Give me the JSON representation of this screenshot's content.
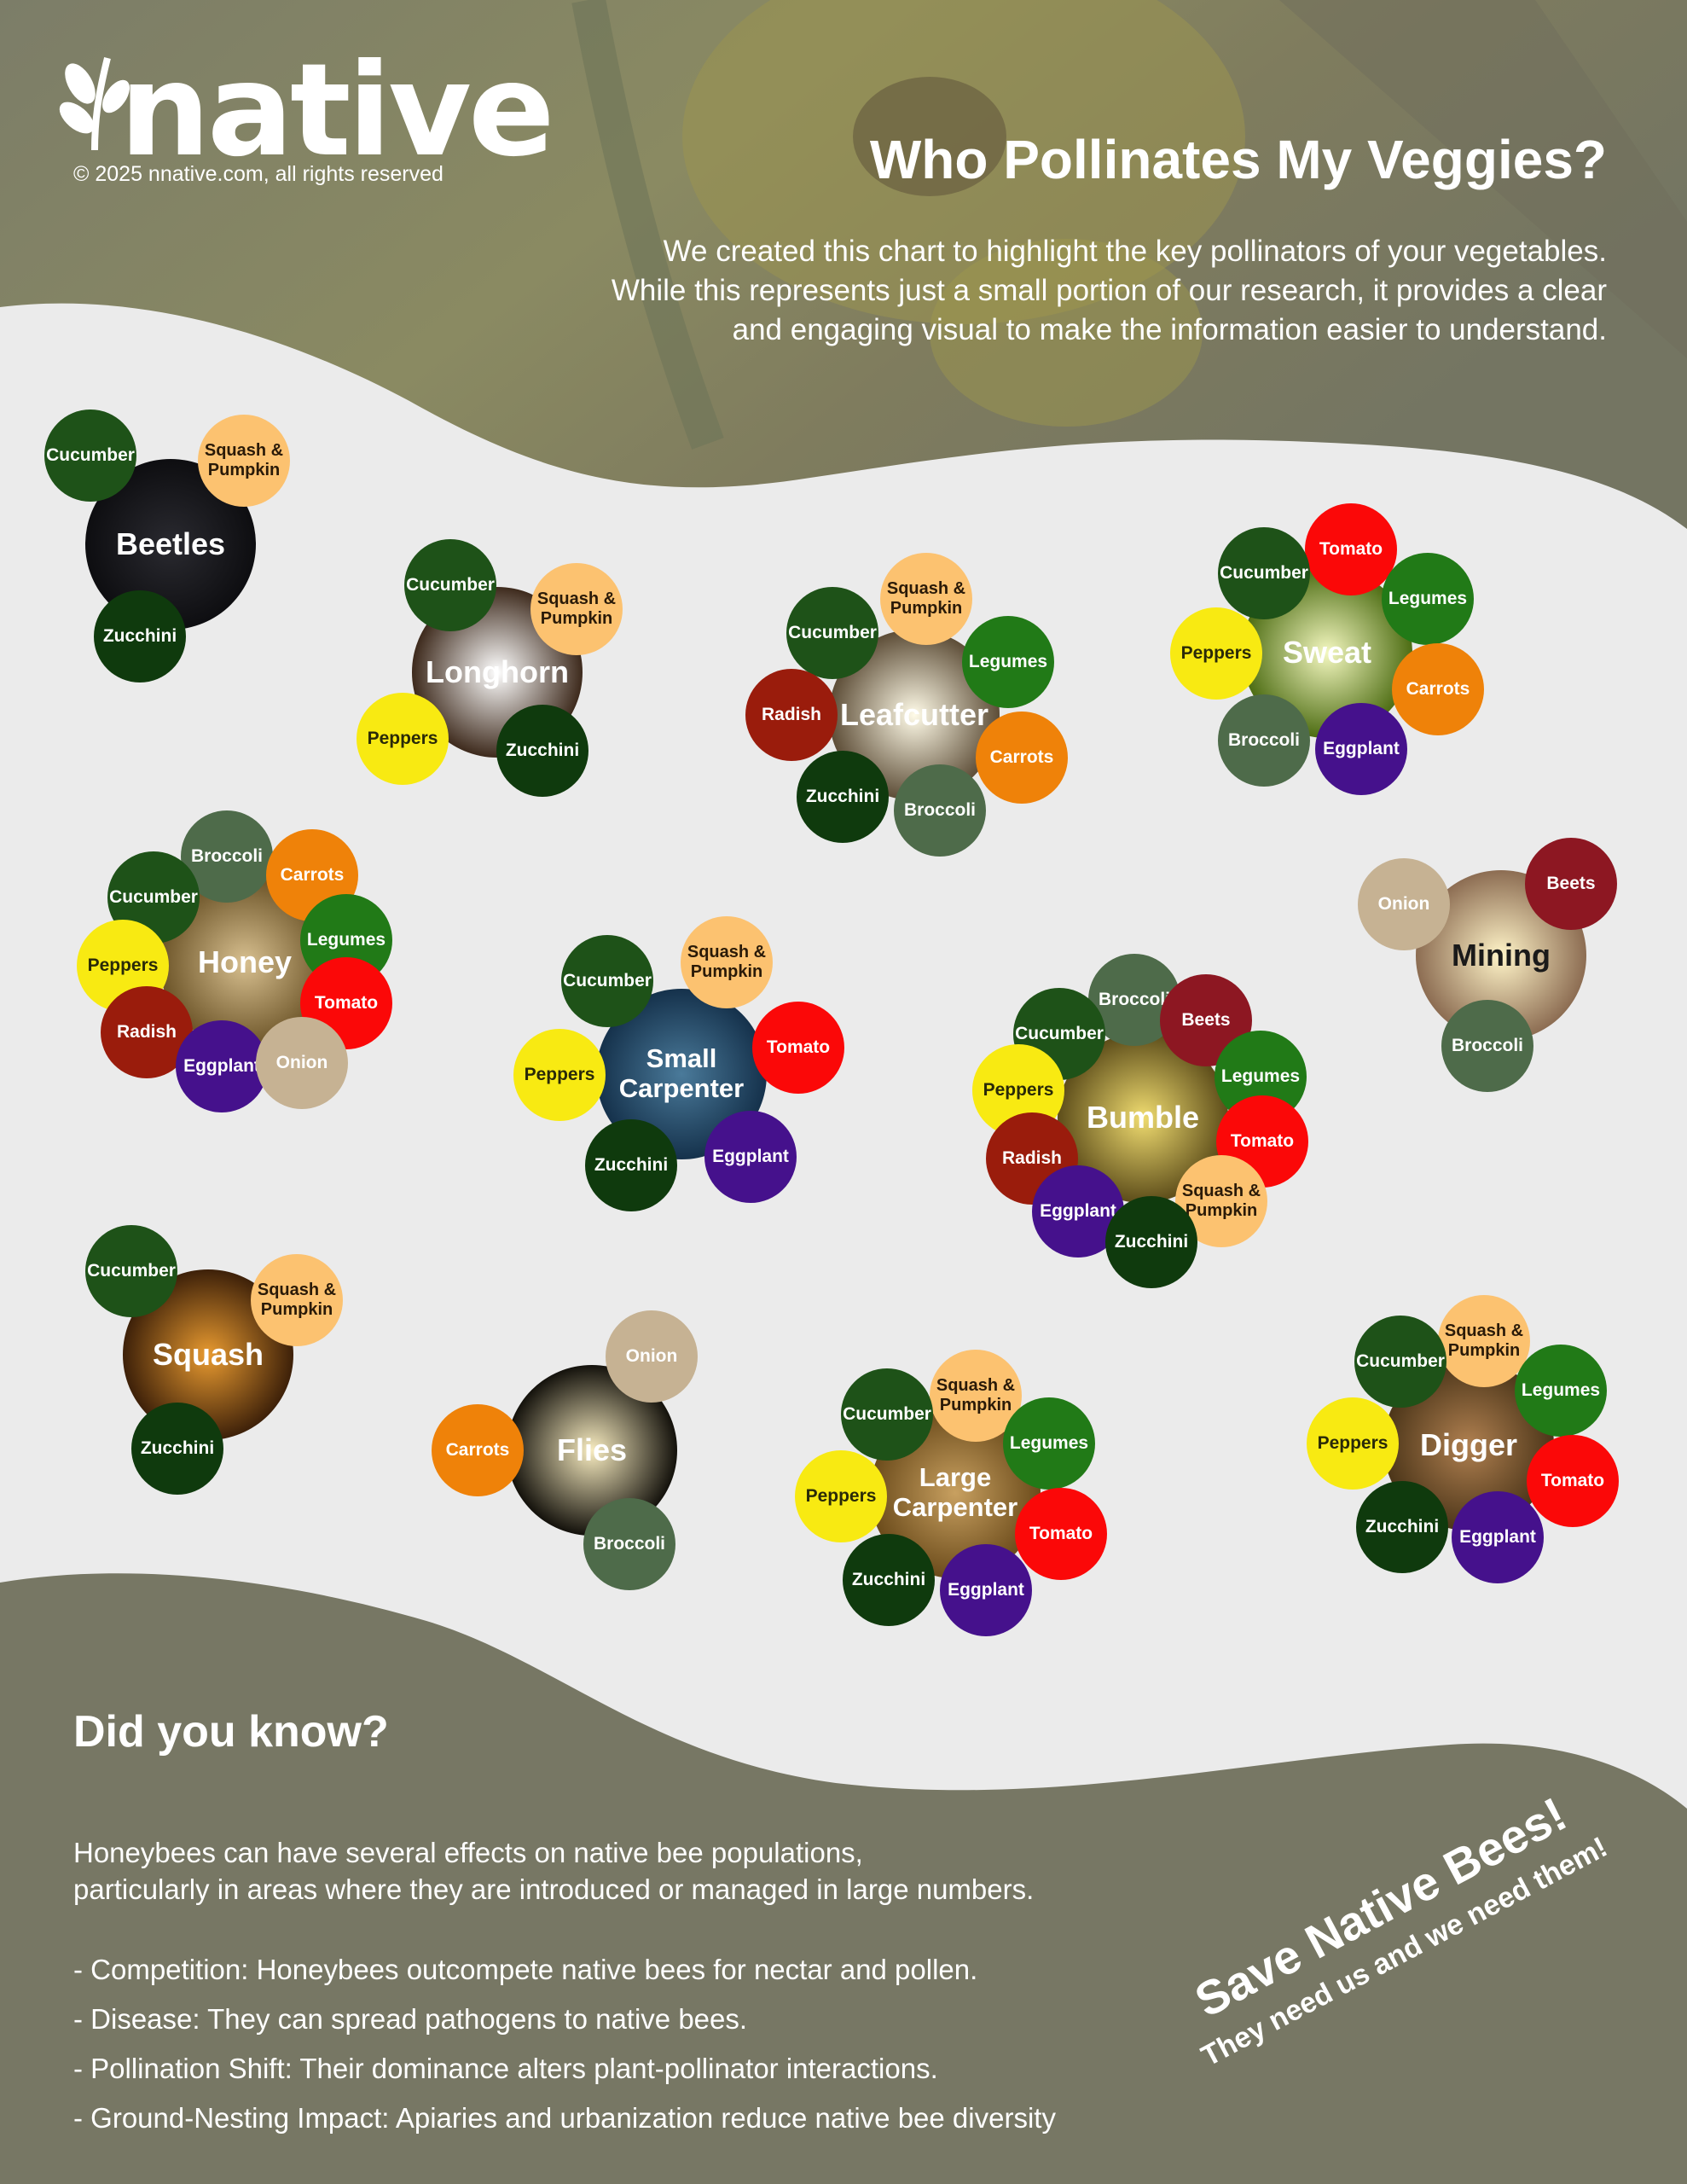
{
  "brand": {
    "logo_text": "native",
    "copyright": "© 2025 nnative.com, all rights reserved"
  },
  "header": {
    "title": "Who Pollinates My Veggies?",
    "intro_lines": [
      "We created this chart to highlight the key pollinators of your vegetables.",
      "While this represents just a small portion of our research, it provides a clear",
      "and engaging visual to make the information easier to understand."
    ]
  },
  "plant_colors": {
    "Cucumber": "#1e5218",
    "Squash & Pumpkin": "#fcc270",
    "Zucchini": "#0f3a0d",
    "Peppers": "#f8ea12",
    "Legumes": "#217a17",
    "Carrots": "#ef8209",
    "Radish": "#9a1c0c",
    "Broccoli": "#4e6b4a",
    "Tomato": "#fb0808",
    "Eggplant": "#45118c",
    "Onion": "#c6b293",
    "Beets": "#8d1722"
  },
  "pollinators": [
    {
      "name": "Beetles",
      "hub_color": "#0d0d10",
      "glow": "#2a2a30",
      "text": "#ffffff",
      "plants": [
        "Cucumber",
        "Squash & Pumpkin",
        "Zucchini"
      ]
    },
    {
      "name": "Longhorn",
      "hub_color": "#3a2618",
      "glow": "#ffffff",
      "text": "#ffffff",
      "plants": [
        "Cucumber",
        "Squash & Pumpkin",
        "Peppers",
        "Zucchini"
      ]
    },
    {
      "name": "Leafcutter",
      "hub_color": "#5a4a34",
      "glow": "#fffbe8",
      "text": "#ffffff",
      "plants": [
        "Cucumber",
        "Squash & Pumpkin",
        "Legumes",
        "Radish",
        "Carrots",
        "Zucchini",
        "Broccoli"
      ]
    },
    {
      "name": "Sweat",
      "hub_color": "#4a6a10",
      "glow": "#f4f8c0",
      "text": "#ffffff",
      "plants": [
        "Tomato",
        "Cucumber",
        "Legumes",
        "Peppers",
        "Carrots",
        "Broccoli",
        "Eggplant"
      ]
    },
    {
      "name": "Honey",
      "hub_color": "#6a5226",
      "glow": "#d8c090",
      "text": "#ffffff",
      "plants": [
        "Broccoli",
        "Carrots",
        "Cucumber",
        "Legumes",
        "Peppers",
        "Tomato",
        "Radish",
        "Eggplant",
        "Onion"
      ]
    },
    {
      "name": "Mining",
      "hub_color": "#8a6a50",
      "glow": "#fff4c8",
      "text": "#1a1a1a",
      "plants": [
        "Onion",
        "Beets",
        "Broccoli"
      ]
    },
    {
      "name": "Small Carpenter",
      "hub_color": "#14304a",
      "glow": "#4a7a9a",
      "text": "#ffffff",
      "plants": [
        "Cucumber",
        "Squash & Pumpkin",
        "Peppers",
        "Tomato",
        "Zucchini",
        "Eggplant"
      ]
    },
    {
      "name": "Bumble",
      "hub_color": "#5a4a18",
      "glow": "#f0dc70",
      "text": "#ffffff",
      "plants": [
        "Broccoli",
        "Beets",
        "Cucumber",
        "Legumes",
        "Peppers",
        "Tomato",
        "Radish",
        "Squash & Pumpkin",
        "Eggplant",
        "Zucchini"
      ]
    },
    {
      "name": "Squash",
      "hub_color": "#3a1e08",
      "glow": "#e89a30",
      "text": "#ffffff",
      "plants": [
        "Cucumber",
        "Squash & Pumpkin",
        "Zucchini"
      ]
    },
    {
      "name": "Flies",
      "hub_color": "#0f0d08",
      "glow": "#f8ecc0",
      "text": "#ffffff",
      "plants": [
        "Onion",
        "Carrots",
        "Broccoli"
      ]
    },
    {
      "name": "Large Carpenter",
      "hub_color": "#6a4a1a",
      "glow": "#c8a060",
      "text": "#ffffff",
      "plants": [
        "Squash & Pumpkin",
        "Cucumber",
        "Legumes",
        "Peppers",
        "Tomato",
        "Zucchini",
        "Eggplant"
      ]
    },
    {
      "name": "Digger",
      "hub_color": "#4a3418",
      "glow": "#b08050",
      "text": "#ffffff",
      "plants": [
        "Squash & Pumpkin",
        "Cucumber",
        "Legumes",
        "Peppers",
        "Tomato",
        "Zucchini",
        "Eggplant"
      ]
    }
  ],
  "did_you_know": {
    "title": "Did you know?",
    "paragraph": [
      "Honeybees can have several effects on native bee populations,",
      "particularly in areas where they are introduced or managed in large numbers."
    ],
    "items": [
      "- Competition: Honeybees outcompete native bees for nectar and pollen.",
      "- Disease: They can spread pathogens to native bees.",
      "- Pollination Shift: Their dominance alters plant-pollinator interactions.",
      "- Ground-Nesting Impact: Apiaries and urbanization reduce native bee diversity"
    ]
  },
  "callout": {
    "headline": "Save Native Bees!",
    "subline": "They need us and we need them!"
  }
}
